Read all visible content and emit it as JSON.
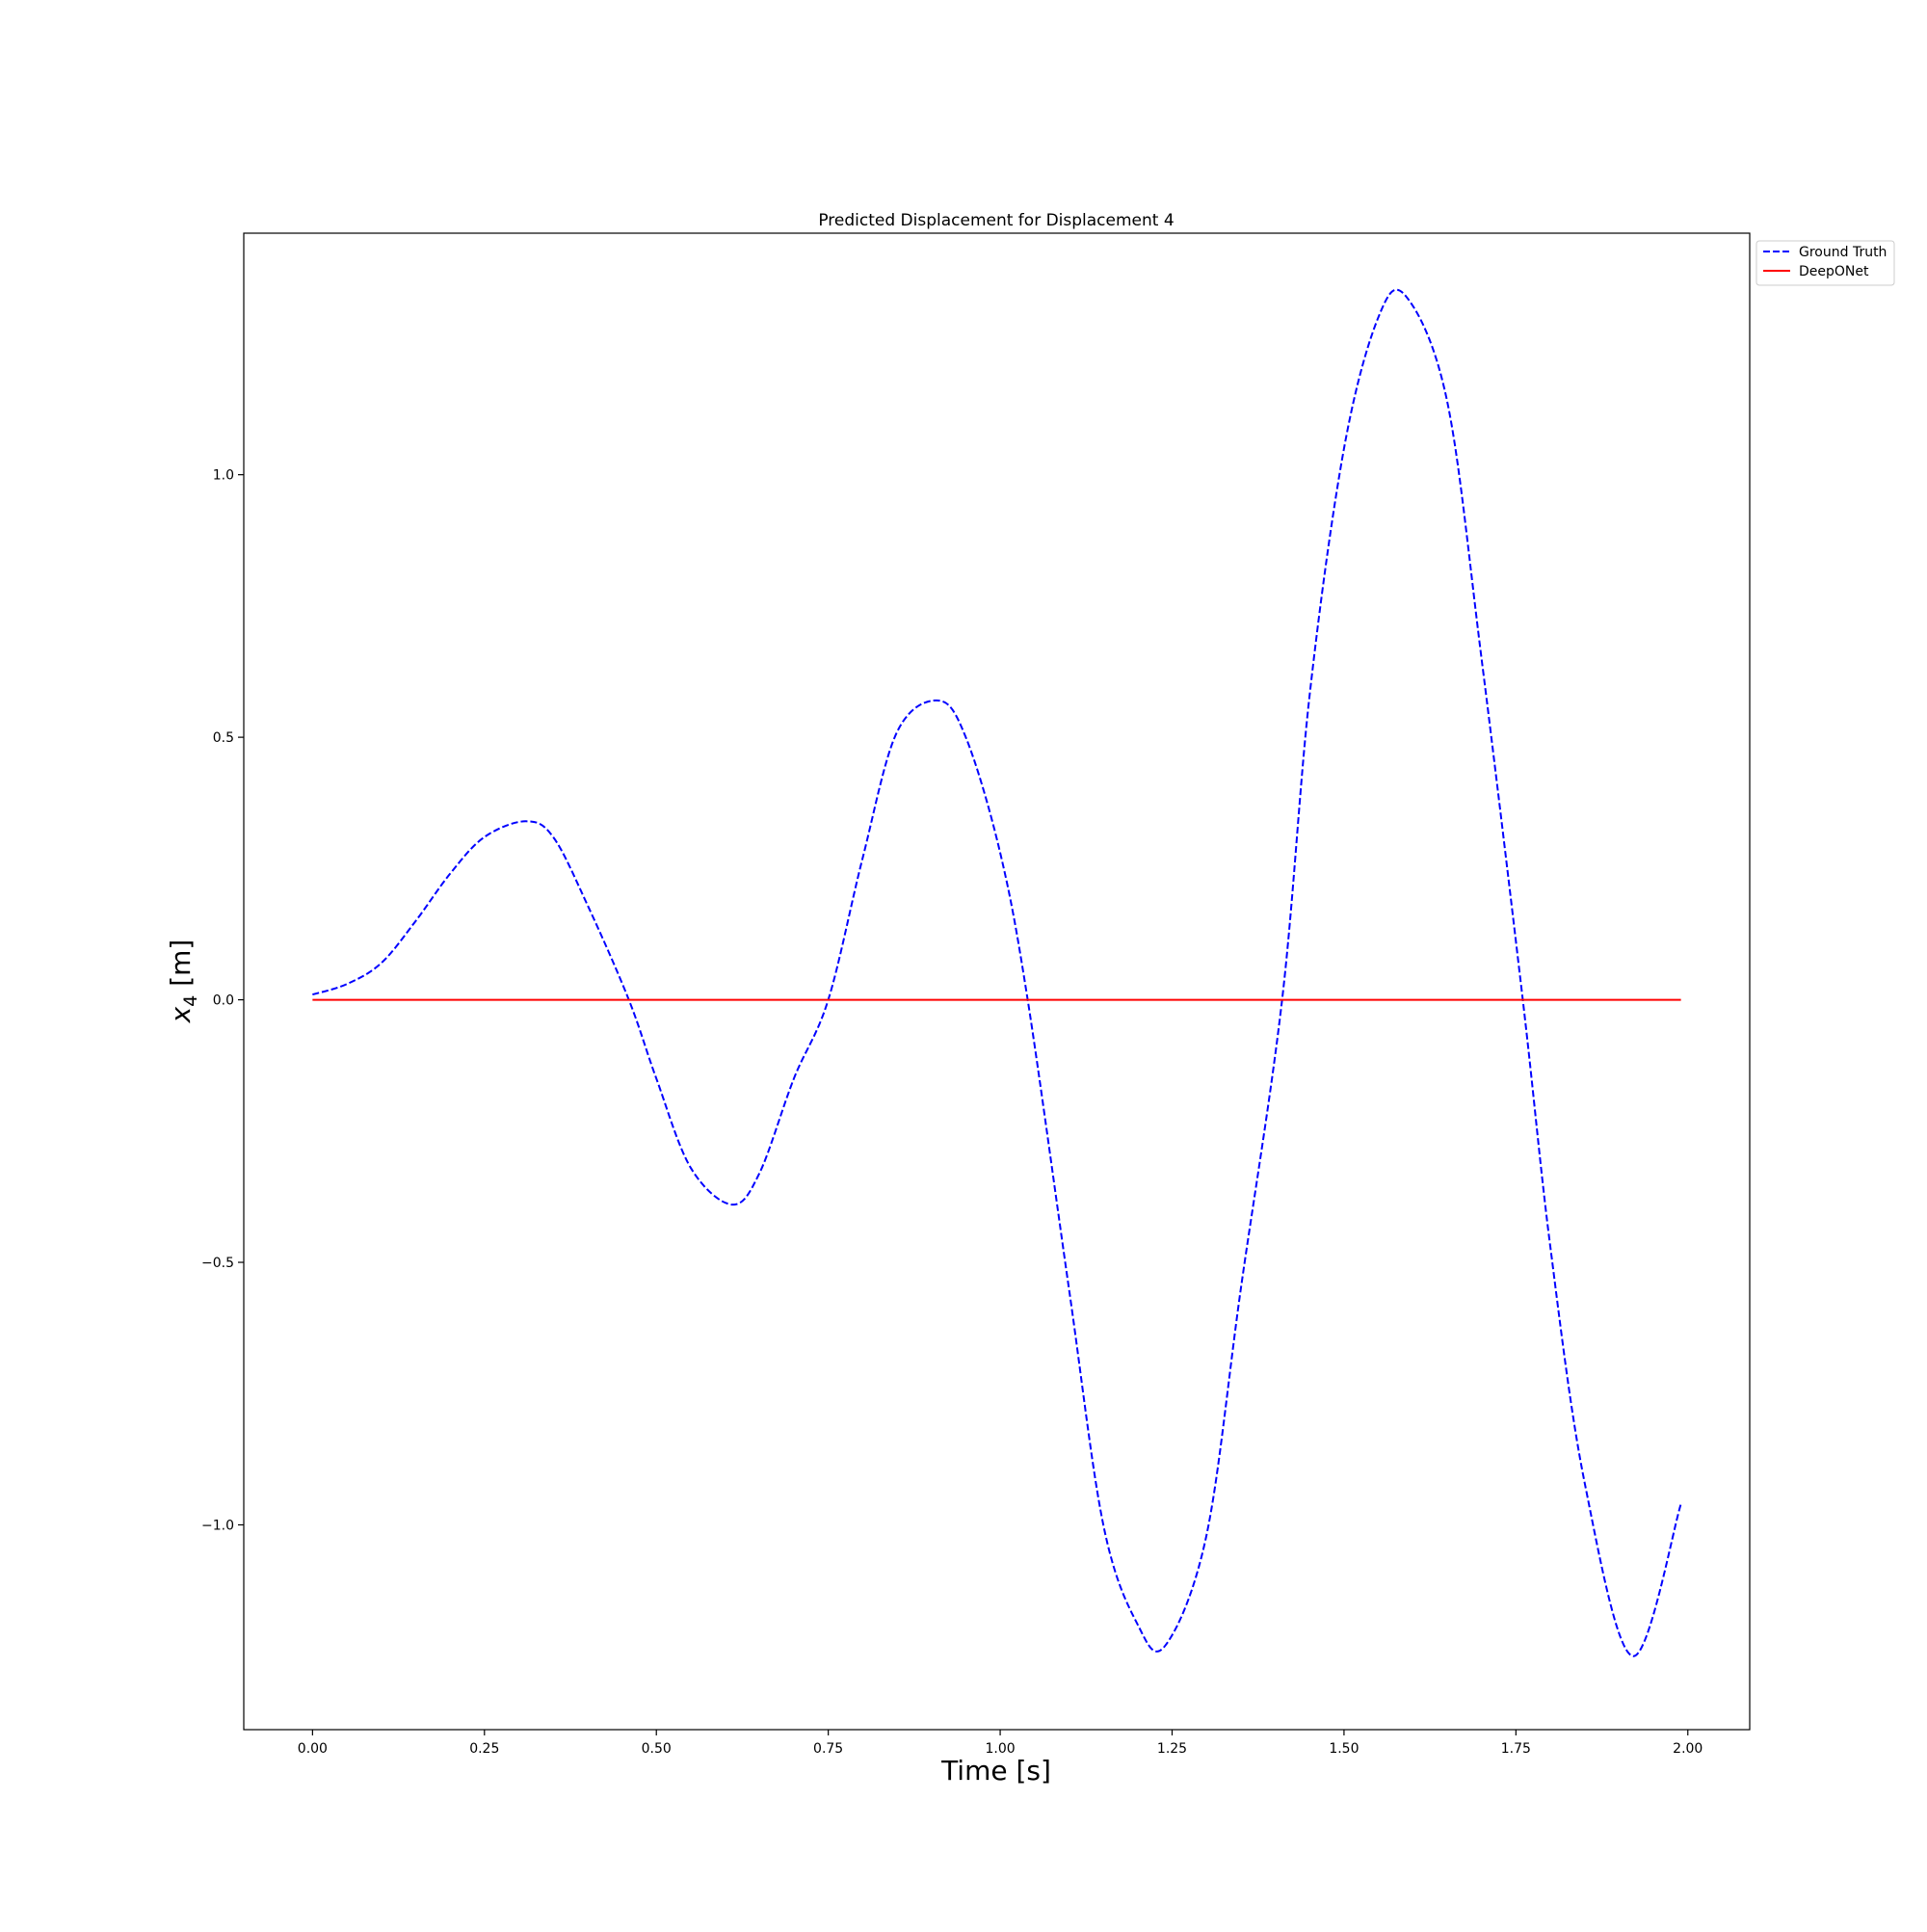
{
  "chart_data": {
    "type": "line",
    "title": "Predicted Displacement for Displacement 4",
    "xlabel": "Time [s]",
    "ylabel": {
      "base": "x",
      "subscript": "4",
      "unit": " [m]"
    },
    "xlim": [
      -0.1,
      2.09
    ],
    "ylim": [
      -1.39,
      1.46
    ],
    "xticks": [
      0.0,
      0.25,
      0.5,
      0.75,
      1.0,
      1.25,
      1.5,
      1.75,
      2.0
    ],
    "xtick_labels": [
      "0.00",
      "0.25",
      "0.50",
      "0.75",
      "1.00",
      "1.25",
      "1.50",
      "1.75",
      "2.00"
    ],
    "yticks": [
      -1.0,
      -0.5,
      0.0,
      0.5,
      1.0
    ],
    "ytick_labels": [
      "−1.0",
      "−0.5",
      "0.0",
      "0.5",
      "1.0"
    ],
    "grid": false,
    "legend_position": "outside-top-right",
    "series": [
      {
        "name": "Ground Truth",
        "color": "#0000ff",
        "style": "dashed",
        "x": [
          0.0,
          0.05,
          0.1,
          0.15,
          0.2,
          0.25,
          0.31,
          0.35,
          0.4,
          0.46,
          0.5,
          0.55,
          0.61,
          0.65,
          0.7,
          0.75,
          0.8,
          0.85,
          0.91,
          0.95,
          1.0,
          1.04,
          1.1,
          1.15,
          1.2,
          1.24,
          1.3,
          1.35,
          1.41,
          1.45,
          1.5,
          1.55,
          1.59,
          1.65,
          1.7,
          1.76,
          1.8,
          1.85,
          1.92,
          1.99
        ],
        "y": [
          0.01,
          0.03,
          0.07,
          0.15,
          0.24,
          0.31,
          0.34,
          0.31,
          0.18,
          0.0,
          -0.15,
          -0.32,
          -0.39,
          -0.33,
          -0.15,
          0.0,
          0.27,
          0.51,
          0.57,
          0.5,
          0.28,
          0.0,
          -0.55,
          -1.0,
          -1.19,
          -1.23,
          -1.02,
          -0.55,
          0.0,
          0.58,
          1.05,
          1.3,
          1.34,
          1.14,
          0.65,
          0.0,
          -0.47,
          -0.92,
          -1.25,
          -0.96
        ]
      },
      {
        "name": "DeepONet",
        "color": "#ff0000",
        "style": "solid",
        "x": [
          0.0,
          1.99
        ],
        "y": [
          0.0,
          0.0
        ]
      }
    ]
  }
}
